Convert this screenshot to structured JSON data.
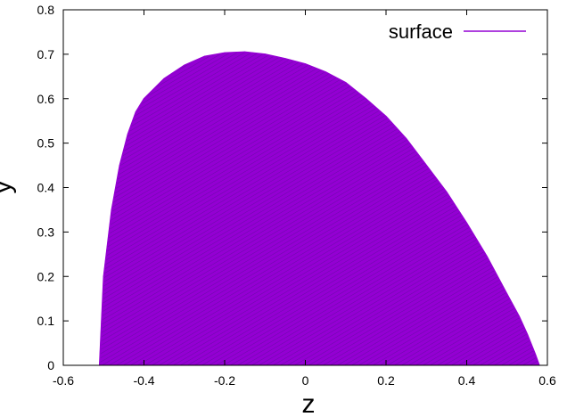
{
  "chart_data": {
    "type": "area",
    "title": "",
    "xlabel": "z",
    "ylabel": "y",
    "xlim": [
      -0.6,
      0.6
    ],
    "ylim": [
      0,
      0.8
    ],
    "x_ticks": [
      "-0.6",
      "-0.4",
      "-0.2",
      "0",
      "0.2",
      "0.4",
      "0.6"
    ],
    "y_ticks": [
      "0",
      "0.1",
      "0.2",
      "0.3",
      "0.4",
      "0.5",
      "0.6",
      "0.7",
      "0.8"
    ],
    "grid": false,
    "legend_position": "top-right",
    "series": [
      {
        "name": "surface",
        "color": "#9400d3",
        "x": [
          -0.51,
          -0.505,
          -0.5,
          -0.48,
          -0.46,
          -0.44,
          -0.42,
          -0.4,
          -0.35,
          -0.3,
          -0.25,
          -0.2,
          -0.15,
          -0.1,
          -0.05,
          0.0,
          0.05,
          0.1,
          0.15,
          0.2,
          0.25,
          0.3,
          0.35,
          0.4,
          0.45,
          0.5,
          0.53,
          0.55,
          0.57,
          0.58
        ],
        "y": [
          0.0,
          0.1,
          0.2,
          0.35,
          0.45,
          0.52,
          0.57,
          0.6,
          0.645,
          0.675,
          0.695,
          0.703,
          0.705,
          0.7,
          0.69,
          0.678,
          0.66,
          0.636,
          0.6,
          0.56,
          0.51,
          0.45,
          0.39,
          0.32,
          0.245,
          0.16,
          0.11,
          0.07,
          0.025,
          0.0
        ]
      }
    ]
  }
}
